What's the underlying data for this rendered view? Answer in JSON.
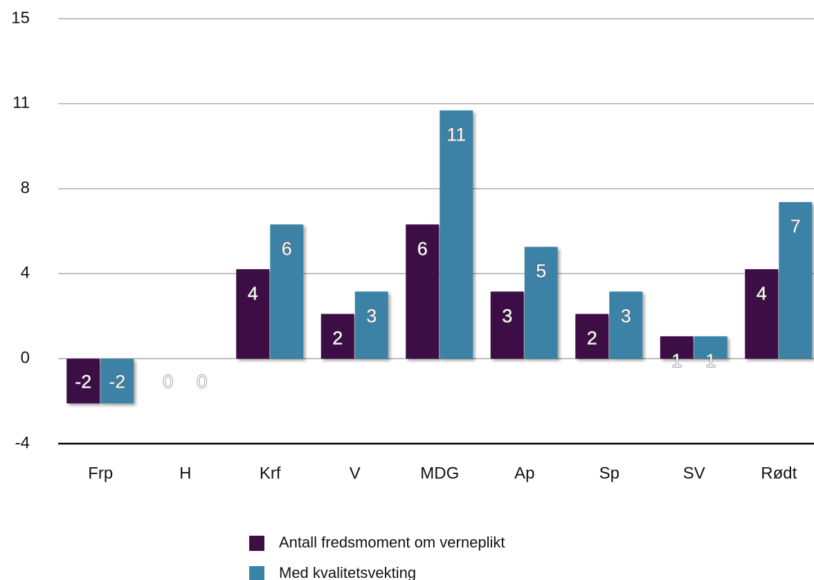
{
  "chart_data": {
    "type": "bar",
    "categories": [
      "Frp",
      "H",
      "Krf",
      "V",
      "MDG",
      "Ap",
      "Sp",
      "SV",
      "Rødt"
    ],
    "series": [
      {
        "name": "Antall fredsmoment om verneplikt",
        "color": "#3d0f45",
        "values": [
          -2,
          0,
          4,
          2,
          6,
          3,
          2,
          1,
          4
        ]
      },
      {
        "name": "Med kvalitetsvekting",
        "color": "#3a82a6",
        "values": [
          -2,
          0,
          6,
          3,
          11.1,
          5,
          3,
          1,
          7
        ],
        "value_labels": [
          "-2",
          "0",
          "6",
          "3",
          "11",
          "5",
          "3",
          "1",
          "7"
        ]
      }
    ],
    "ylim": [
      -3.8,
      15.2
    ],
    "yticks": [
      {
        "value": -3.8,
        "label": "-4"
      },
      {
        "value": 0,
        "label": "0"
      },
      {
        "value": 3.8,
        "label": "4"
      },
      {
        "value": 7.6,
        "label": "8"
      },
      {
        "value": 11.4,
        "label": "11"
      },
      {
        "value": 15.2,
        "label": "15"
      }
    ],
    "grid": true
  }
}
